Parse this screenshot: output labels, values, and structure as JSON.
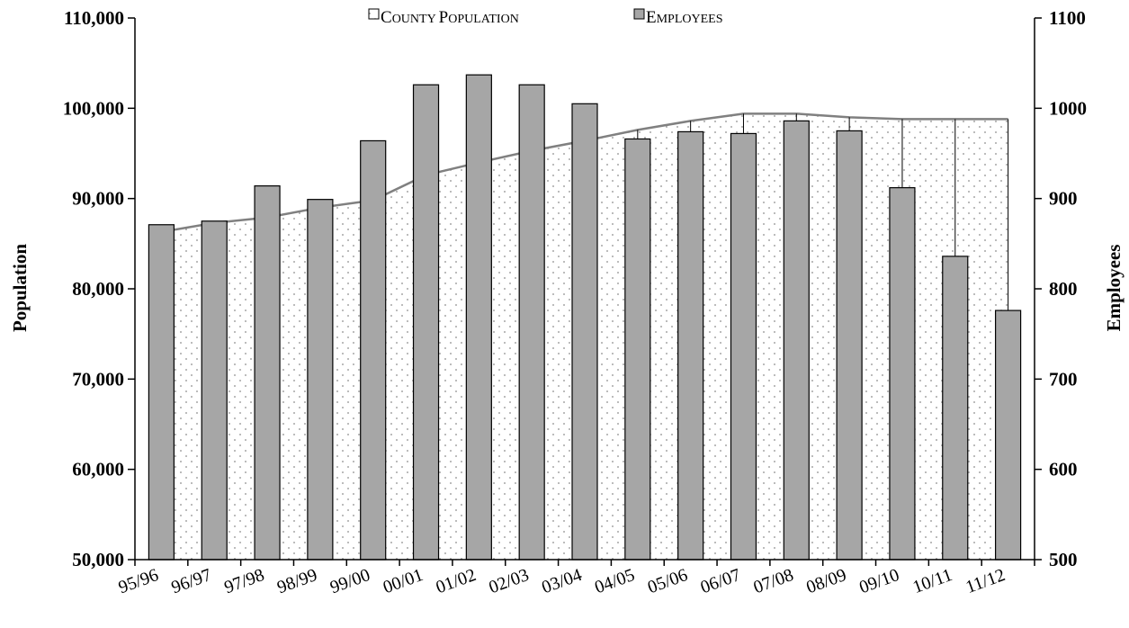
{
  "chart_data": {
    "type": "bar",
    "categories": [
      "95/96",
      "96/97",
      "97/98",
      "98/99",
      "99/00",
      "00/01",
      "01/02",
      "02/03",
      "03/04",
      "04/05",
      "05/06",
      "06/07",
      "07/08",
      "08/09",
      "09/10",
      "10/11",
      "11/12"
    ],
    "series": [
      {
        "name": "County Population",
        "legend_first": "C",
        "legend_rest": "OUNTY ",
        "legend_first2": "P",
        "legend_rest2": "OPULATION",
        "type": "area",
        "axis": "left",
        "values": [
          86300,
          87300,
          87900,
          89000,
          89800,
          92600,
          94000,
          95300,
          96400,
          97600,
          98600,
          99400,
          99400,
          99000,
          98800,
          98800,
          98800
        ]
      },
      {
        "name": "Employees",
        "legend_first": "E",
        "legend_rest": "MPLOYEES",
        "type": "bar",
        "axis": "right",
        "values": [
          871,
          875,
          914,
          899,
          964,
          1026,
          1037,
          1026,
          1005,
          966,
          974,
          972,
          986,
          975,
          912,
          836,
          776
        ]
      }
    ],
    "ylabel_left": "Population",
    "ylabel_right": "Employees",
    "ylim_left": [
      50000,
      110000
    ],
    "ylim_right": [
      500,
      1100
    ],
    "yticks_left": [
      "50,000",
      "60,000",
      "70,000",
      "80,000",
      "90,000",
      "100,000",
      "110,000"
    ],
    "yticks_right": [
      "500",
      "600",
      "700",
      "800",
      "900",
      "1000",
      "1100"
    ],
    "legend_position": "top-center",
    "grid": false,
    "colors": {
      "bar": "#a6a6a6",
      "area_line": "#808080",
      "area_dots": "#8c8c8c",
      "axis": "#000000"
    }
  }
}
